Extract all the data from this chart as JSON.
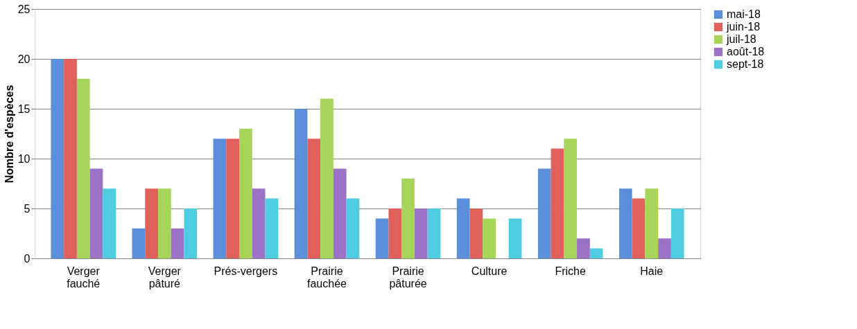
{
  "chart_data": {
    "type": "bar",
    "ylabel": "Nombre d'espèces",
    "categories": [
      "Verger fauché",
      "Verger pâturé",
      "Prés-vergers",
      "Prairie fauchée",
      "Prairie pâturée",
      "Culture",
      "Friche",
      "Haie"
    ],
    "series": [
      {
        "name": "mai-18",
        "color": "#5b8fd9",
        "values": [
          20,
          3,
          12,
          15,
          4,
          6,
          9,
          7
        ]
      },
      {
        "name": "juin-18",
        "color": "#e0605c",
        "values": [
          20,
          7,
          12,
          12,
          5,
          5,
          11,
          6
        ]
      },
      {
        "name": "juil-18",
        "color": "#a6d55a",
        "values": [
          18,
          7,
          13,
          16,
          8,
          4,
          12,
          7
        ]
      },
      {
        "name": "août-18",
        "color": "#9b72c5",
        "values": [
          9,
          3,
          7,
          9,
          5,
          0,
          2,
          2
        ]
      },
      {
        "name": "sept-18",
        "color": "#4fcde0",
        "values": [
          7,
          5,
          6,
          6,
          5,
          4,
          1,
          5
        ]
      }
    ],
    "ylim": [
      0,
      25
    ],
    "yticks": [
      0,
      5,
      10,
      15,
      20,
      25
    ],
    "grid": "y",
    "legend": "right"
  }
}
